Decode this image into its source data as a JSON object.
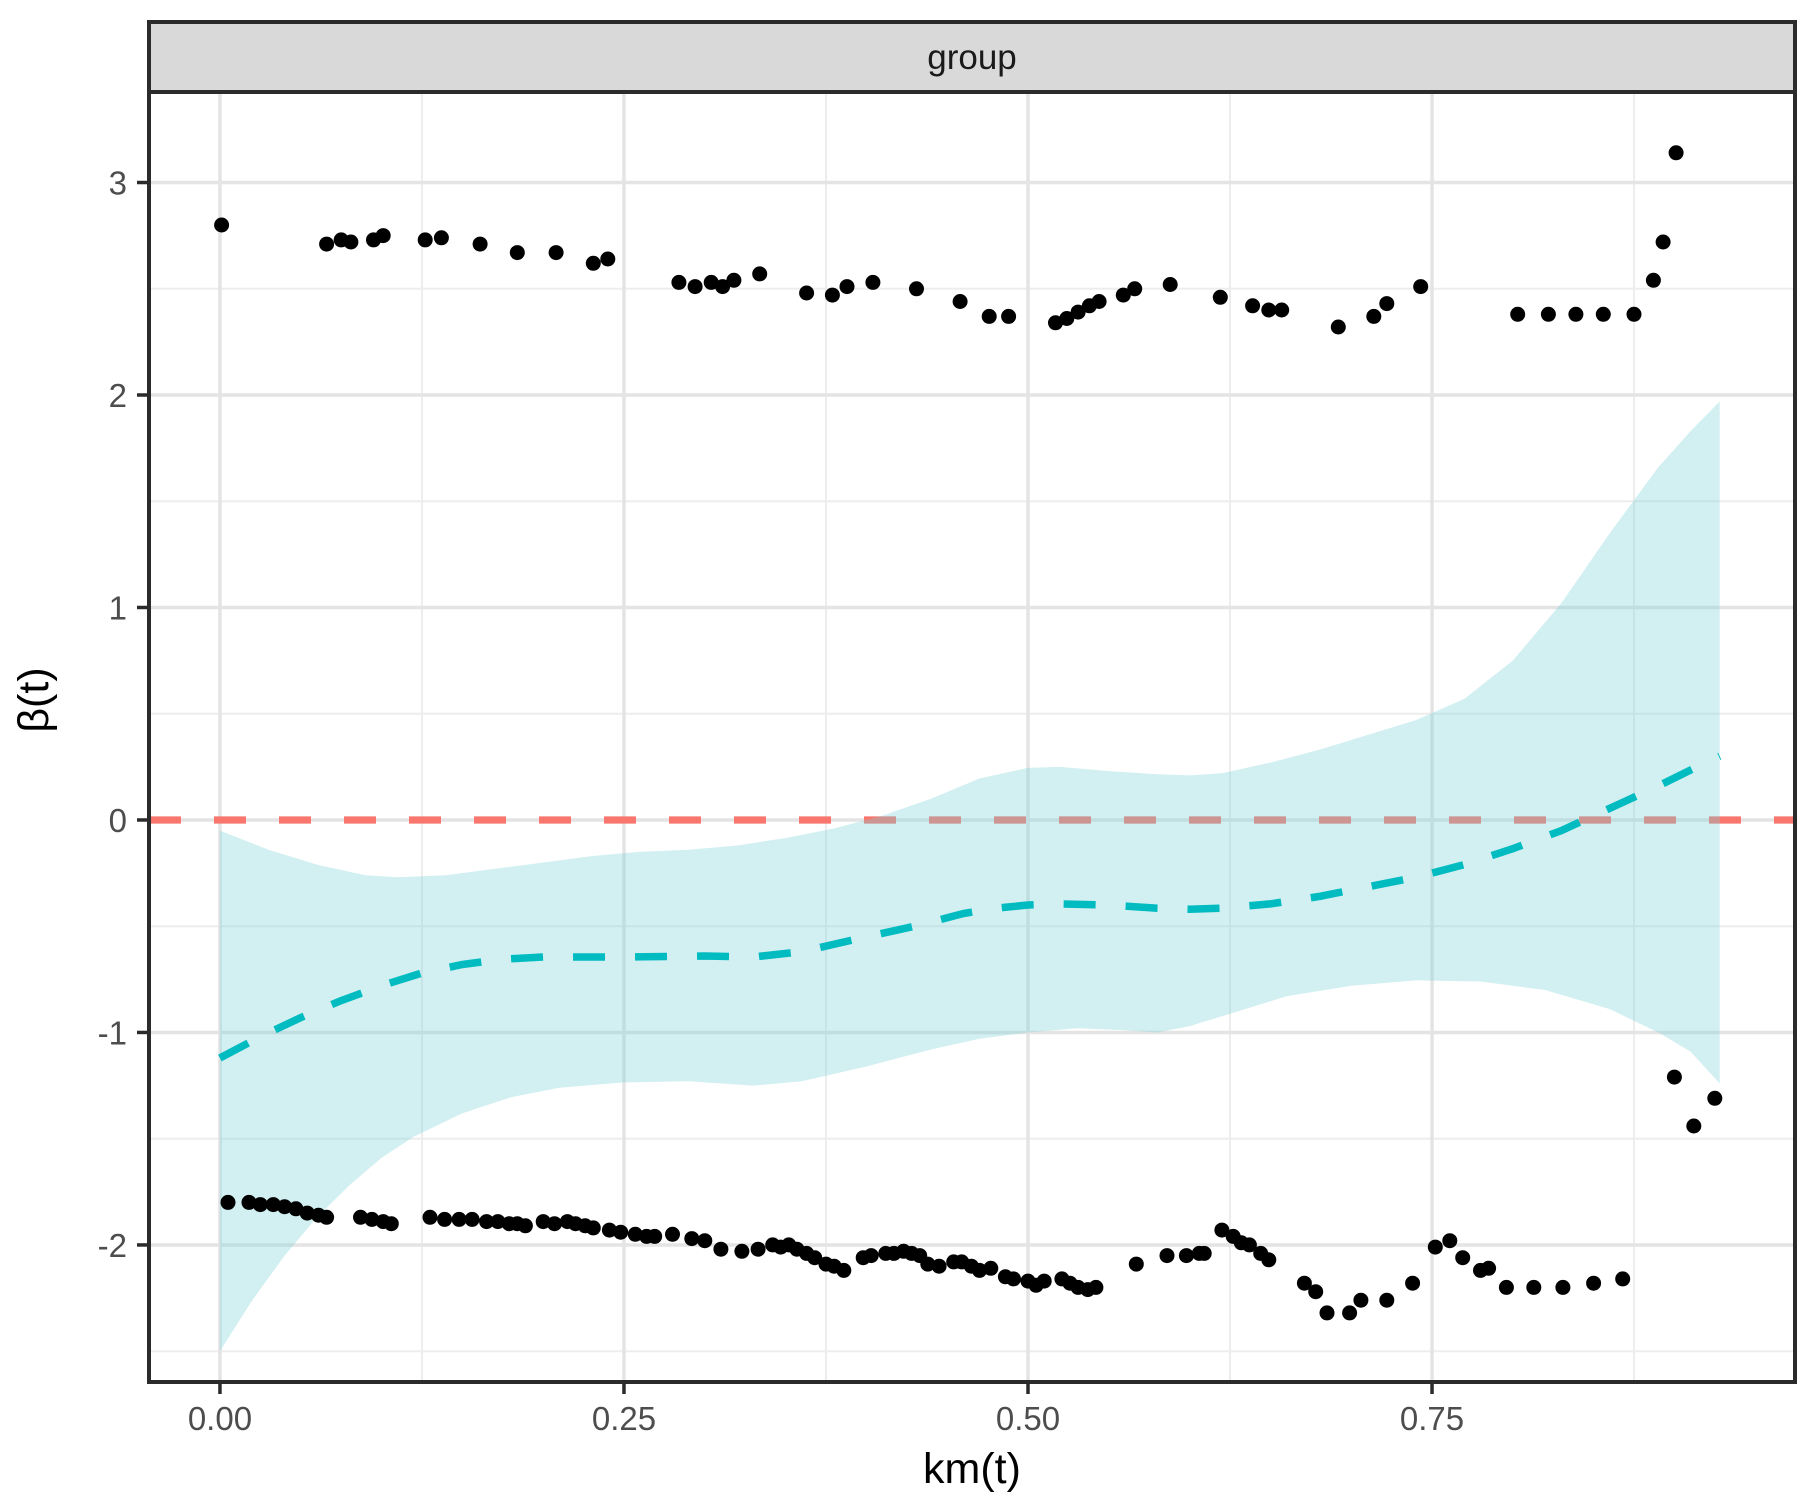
{
  "figure": {
    "facet_label": "group",
    "x_axis_title": "km(t)",
    "y_axis_title": "β(t)"
  },
  "colors": {
    "background": "#FFFFFF",
    "panel_background": "#FFFFFF",
    "panel_border": "#2B2B2B",
    "strip_background": "#D9D9D9",
    "strip_border": "#2B2B2B",
    "grid_major": "#E4E4E4",
    "grid_minor": "#EDEDED",
    "reference_red": "#F8766D",
    "smooth_teal": "#00BCC1",
    "band_base": "#7ED1D7",
    "point_black": "#000000",
    "axis_text": "#4D4D4D",
    "axis_title_color": "#000000"
  },
  "chart_data": {
    "type": "scatter",
    "facet": "group",
    "title": "group",
    "xlabel": "km(t)",
    "ylabel": "β(t)",
    "xlim": [
      -0.0439,
      0.9746
    ],
    "ylim": [
      -2.645,
      3.426
    ],
    "x_ticks": [
      0,
      0.25,
      0.5,
      0.75
    ],
    "x_tick_labels": [
      "0.00",
      "0.25",
      "0.50",
      "0.75"
    ],
    "x_minor": [
      0.125,
      0.375,
      0.625,
      0.875
    ],
    "y_ticks": [
      3,
      2,
      1,
      0,
      -1,
      -2
    ],
    "y_tick_labels": [
      "3",
      "2",
      "1",
      "0",
      "-1",
      "-2"
    ],
    "y_minor": [
      2.5,
      1.5,
      0.5,
      -0.5,
      -1.5,
      -2.5
    ],
    "grid": true,
    "legend_position": "none",
    "zero_line": {
      "y": 0,
      "color": "#F8766D",
      "dash": [
        32,
        33
      ],
      "width": 7.3
    },
    "smooth": {
      "color": "#00BCC1",
      "width": 7.5,
      "dash": [
        32,
        30
      ],
      "band_color": "#7ED1D7",
      "band_opacity": 0.35,
      "line": [
        [
          0.0,
          -1.12
        ],
        [
          0.025,
          -1.02
        ],
        [
          0.05,
          -0.93
        ],
        [
          0.075,
          -0.85
        ],
        [
          0.1,
          -0.78
        ],
        [
          0.125,
          -0.72
        ],
        [
          0.15,
          -0.68
        ],
        [
          0.175,
          -0.655
        ],
        [
          0.2,
          -0.645
        ],
        [
          0.25,
          -0.645
        ],
        [
          0.3,
          -0.64
        ],
        [
          0.33,
          -0.645
        ],
        [
          0.36,
          -0.62
        ],
        [
          0.4,
          -0.55
        ],
        [
          0.43,
          -0.5
        ],
        [
          0.46,
          -0.44
        ],
        [
          0.48,
          -0.415
        ],
        [
          0.5,
          -0.4
        ],
        [
          0.52,
          -0.395
        ],
        [
          0.55,
          -0.4
        ],
        [
          0.58,
          -0.415
        ],
        [
          0.6,
          -0.42
        ],
        [
          0.62,
          -0.415
        ],
        [
          0.65,
          -0.395
        ],
        [
          0.68,
          -0.36
        ],
        [
          0.71,
          -0.315
        ],
        [
          0.74,
          -0.27
        ],
        [
          0.77,
          -0.21
        ],
        [
          0.8,
          -0.135
        ],
        [
          0.83,
          -0.05
        ],
        [
          0.85,
          0.02
        ],
        [
          0.87,
          0.09
        ],
        [
          0.89,
          0.16
        ],
        [
          0.91,
          0.235
        ],
        [
          0.928,
          0.3
        ]
      ],
      "band_upper": [
        [
          0.0,
          -0.05
        ],
        [
          0.03,
          -0.14
        ],
        [
          0.06,
          -0.21
        ],
        [
          0.09,
          -0.26
        ],
        [
          0.11,
          -0.27
        ],
        [
          0.14,
          -0.26
        ],
        [
          0.17,
          -0.23
        ],
        [
          0.2,
          -0.2
        ],
        [
          0.23,
          -0.17
        ],
        [
          0.26,
          -0.15
        ],
        [
          0.29,
          -0.14
        ],
        [
          0.32,
          -0.12
        ],
        [
          0.35,
          -0.085
        ],
        [
          0.38,
          -0.04
        ],
        [
          0.41,
          0.02
        ],
        [
          0.44,
          0.1
        ],
        [
          0.47,
          0.195
        ],
        [
          0.5,
          0.245
        ],
        [
          0.52,
          0.25
        ],
        [
          0.55,
          0.23
        ],
        [
          0.58,
          0.215
        ],
        [
          0.6,
          0.21
        ],
        [
          0.62,
          0.22
        ],
        [
          0.65,
          0.27
        ],
        [
          0.68,
          0.33
        ],
        [
          0.71,
          0.4
        ],
        [
          0.74,
          0.47
        ],
        [
          0.77,
          0.57
        ],
        [
          0.8,
          0.75
        ],
        [
          0.83,
          1.02
        ],
        [
          0.86,
          1.35
        ],
        [
          0.89,
          1.66
        ],
        [
          0.91,
          1.83
        ],
        [
          0.928,
          1.97
        ]
      ],
      "band_lower": [
        [
          0.0,
          -2.5
        ],
        [
          0.02,
          -2.26
        ],
        [
          0.04,
          -2.05
        ],
        [
          0.06,
          -1.87
        ],
        [
          0.08,
          -1.72
        ],
        [
          0.1,
          -1.59
        ],
        [
          0.12,
          -1.49
        ],
        [
          0.15,
          -1.38
        ],
        [
          0.18,
          -1.305
        ],
        [
          0.21,
          -1.26
        ],
        [
          0.25,
          -1.235
        ],
        [
          0.29,
          -1.23
        ],
        [
          0.33,
          -1.25
        ],
        [
          0.36,
          -1.23
        ],
        [
          0.4,
          -1.16
        ],
        [
          0.44,
          -1.08
        ],
        [
          0.47,
          -1.03
        ],
        [
          0.5,
          -1.0
        ],
        [
          0.53,
          -0.98
        ],
        [
          0.56,
          -0.99
        ],
        [
          0.58,
          -1.0
        ],
        [
          0.6,
          -0.97
        ],
        [
          0.63,
          -0.9
        ],
        [
          0.66,
          -0.83
        ],
        [
          0.7,
          -0.78
        ],
        [
          0.74,
          -0.755
        ],
        [
          0.78,
          -0.76
        ],
        [
          0.82,
          -0.8
        ],
        [
          0.86,
          -0.89
        ],
        [
          0.89,
          -1.0
        ],
        [
          0.91,
          -1.09
        ],
        [
          0.928,
          -1.24
        ]
      ]
    },
    "points": {
      "color": "#000000",
      "radius": 7.5,
      "upper_band": [
        [
          0.001,
          2.8
        ],
        [
          0.066,
          2.71
        ],
        [
          0.075,
          2.73
        ],
        [
          0.081,
          2.72
        ],
        [
          0.095,
          2.73
        ],
        [
          0.101,
          2.75
        ],
        [
          0.127,
          2.73
        ],
        [
          0.137,
          2.74
        ],
        [
          0.161,
          2.71
        ],
        [
          0.184,
          2.67
        ],
        [
          0.208,
          2.67
        ],
        [
          0.231,
          2.62
        ],
        [
          0.24,
          2.64
        ],
        [
          0.284,
          2.53
        ],
        [
          0.294,
          2.51
        ],
        [
          0.304,
          2.53
        ],
        [
          0.311,
          2.51
        ],
        [
          0.318,
          2.54
        ],
        [
          0.334,
          2.57
        ],
        [
          0.363,
          2.48
        ],
        [
          0.379,
          2.47
        ],
        [
          0.388,
          2.51
        ],
        [
          0.404,
          2.53
        ],
        [
          0.431,
          2.5
        ],
        [
          0.458,
          2.44
        ],
        [
          0.476,
          2.37
        ],
        [
          0.488,
          2.37
        ],
        [
          0.517,
          2.34
        ],
        [
          0.524,
          2.36
        ],
        [
          0.531,
          2.39
        ],
        [
          0.538,
          2.42
        ],
        [
          0.544,
          2.44
        ],
        [
          0.559,
          2.47
        ],
        [
          0.566,
          2.5
        ],
        [
          0.588,
          2.52
        ],
        [
          0.619,
          2.46
        ],
        [
          0.639,
          2.42
        ],
        [
          0.649,
          2.4
        ],
        [
          0.657,
          2.4
        ],
        [
          0.692,
          2.32
        ],
        [
          0.714,
          2.37
        ],
        [
          0.722,
          2.43
        ],
        [
          0.743,
          2.51
        ],
        [
          0.803,
          2.38
        ],
        [
          0.822,
          2.38
        ],
        [
          0.839,
          2.38
        ],
        [
          0.856,
          2.38
        ],
        [
          0.875,
          2.38
        ],
        [
          0.887,
          2.54
        ],
        [
          0.893,
          2.72
        ],
        [
          0.901,
          3.14
        ]
      ],
      "lower_band": [
        [
          0.005,
          -1.8
        ],
        [
          0.018,
          -1.8
        ],
        [
          0.025,
          -1.81
        ],
        [
          0.033,
          -1.81
        ],
        [
          0.04,
          -1.82
        ],
        [
          0.047,
          -1.83
        ],
        [
          0.054,
          -1.85
        ],
        [
          0.061,
          -1.86
        ],
        [
          0.066,
          -1.87
        ],
        [
          0.087,
          -1.87
        ],
        [
          0.094,
          -1.88
        ],
        [
          0.101,
          -1.89
        ],
        [
          0.106,
          -1.9
        ],
        [
          0.13,
          -1.87
        ],
        [
          0.139,
          -1.88
        ],
        [
          0.148,
          -1.88
        ],
        [
          0.156,
          -1.88
        ],
        [
          0.165,
          -1.89
        ],
        [
          0.172,
          -1.89
        ],
        [
          0.179,
          -1.9
        ],
        [
          0.184,
          -1.9
        ],
        [
          0.189,
          -1.91
        ],
        [
          0.2,
          -1.89
        ],
        [
          0.207,
          -1.9
        ],
        [
          0.215,
          -1.89
        ],
        [
          0.22,
          -1.9
        ],
        [
          0.226,
          -1.91
        ],
        [
          0.231,
          -1.92
        ],
        [
          0.241,
          -1.93
        ],
        [
          0.248,
          -1.94
        ],
        [
          0.257,
          -1.95
        ],
        [
          0.264,
          -1.96
        ],
        [
          0.269,
          -1.96
        ],
        [
          0.28,
          -1.95
        ],
        [
          0.292,
          -1.97
        ],
        [
          0.3,
          -1.98
        ],
        [
          0.31,
          -2.02
        ],
        [
          0.323,
          -2.03
        ],
        [
          0.333,
          -2.02
        ],
        [
          0.342,
          -2.0
        ],
        [
          0.347,
          -2.01
        ],
        [
          0.352,
          -2.0
        ],
        [
          0.357,
          -2.02
        ],
        [
          0.363,
          -2.04
        ],
        [
          0.368,
          -2.06
        ],
        [
          0.375,
          -2.09
        ],
        [
          0.38,
          -2.1
        ],
        [
          0.386,
          -2.12
        ],
        [
          0.398,
          -2.06
        ],
        [
          0.403,
          -2.05
        ],
        [
          0.412,
          -2.04
        ],
        [
          0.417,
          -2.04
        ],
        [
          0.423,
          -2.03
        ],
        [
          0.428,
          -2.04
        ],
        [
          0.433,
          -2.05
        ],
        [
          0.438,
          -2.09
        ],
        [
          0.445,
          -2.1
        ],
        [
          0.454,
          -2.08
        ],
        [
          0.459,
          -2.08
        ],
        [
          0.465,
          -2.1
        ],
        [
          0.47,
          -2.12
        ],
        [
          0.477,
          -2.11
        ],
        [
          0.486,
          -2.15
        ],
        [
          0.491,
          -2.16
        ],
        [
          0.5,
          -2.17
        ],
        [
          0.505,
          -2.19
        ],
        [
          0.51,
          -2.17
        ],
        [
          0.521,
          -2.16
        ],
        [
          0.526,
          -2.18
        ],
        [
          0.531,
          -2.2
        ],
        [
          0.537,
          -2.21
        ],
        [
          0.542,
          -2.2
        ],
        [
          0.567,
          -2.09
        ],
        [
          0.586,
          -2.05
        ],
        [
          0.598,
          -2.05
        ],
        [
          0.606,
          -2.04
        ],
        [
          0.609,
          -2.04
        ],
        [
          0.62,
          -1.93
        ],
        [
          0.627,
          -1.96
        ],
        [
          0.632,
          -1.99
        ],
        [
          0.637,
          -2.0
        ],
        [
          0.644,
          -2.04
        ],
        [
          0.649,
          -2.07
        ],
        [
          0.671,
          -2.18
        ],
        [
          0.678,
          -2.22
        ],
        [
          0.685,
          -2.32
        ],
        [
          0.699,
          -2.32
        ],
        [
          0.706,
          -2.26
        ],
        [
          0.722,
          -2.26
        ],
        [
          0.738,
          -2.18
        ],
        [
          0.752,
          -2.01
        ],
        [
          0.761,
          -1.98
        ],
        [
          0.769,
          -2.06
        ],
        [
          0.78,
          -2.12
        ],
        [
          0.785,
          -2.11
        ],
        [
          0.796,
          -2.2
        ],
        [
          0.813,
          -2.2
        ],
        [
          0.831,
          -2.2
        ],
        [
          0.85,
          -2.18
        ],
        [
          0.868,
          -2.16
        ]
      ],
      "right_outliers": [
        [
          0.9,
          -1.21
        ],
        [
          0.912,
          -1.44
        ],
        [
          0.925,
          -1.31
        ]
      ]
    }
  }
}
